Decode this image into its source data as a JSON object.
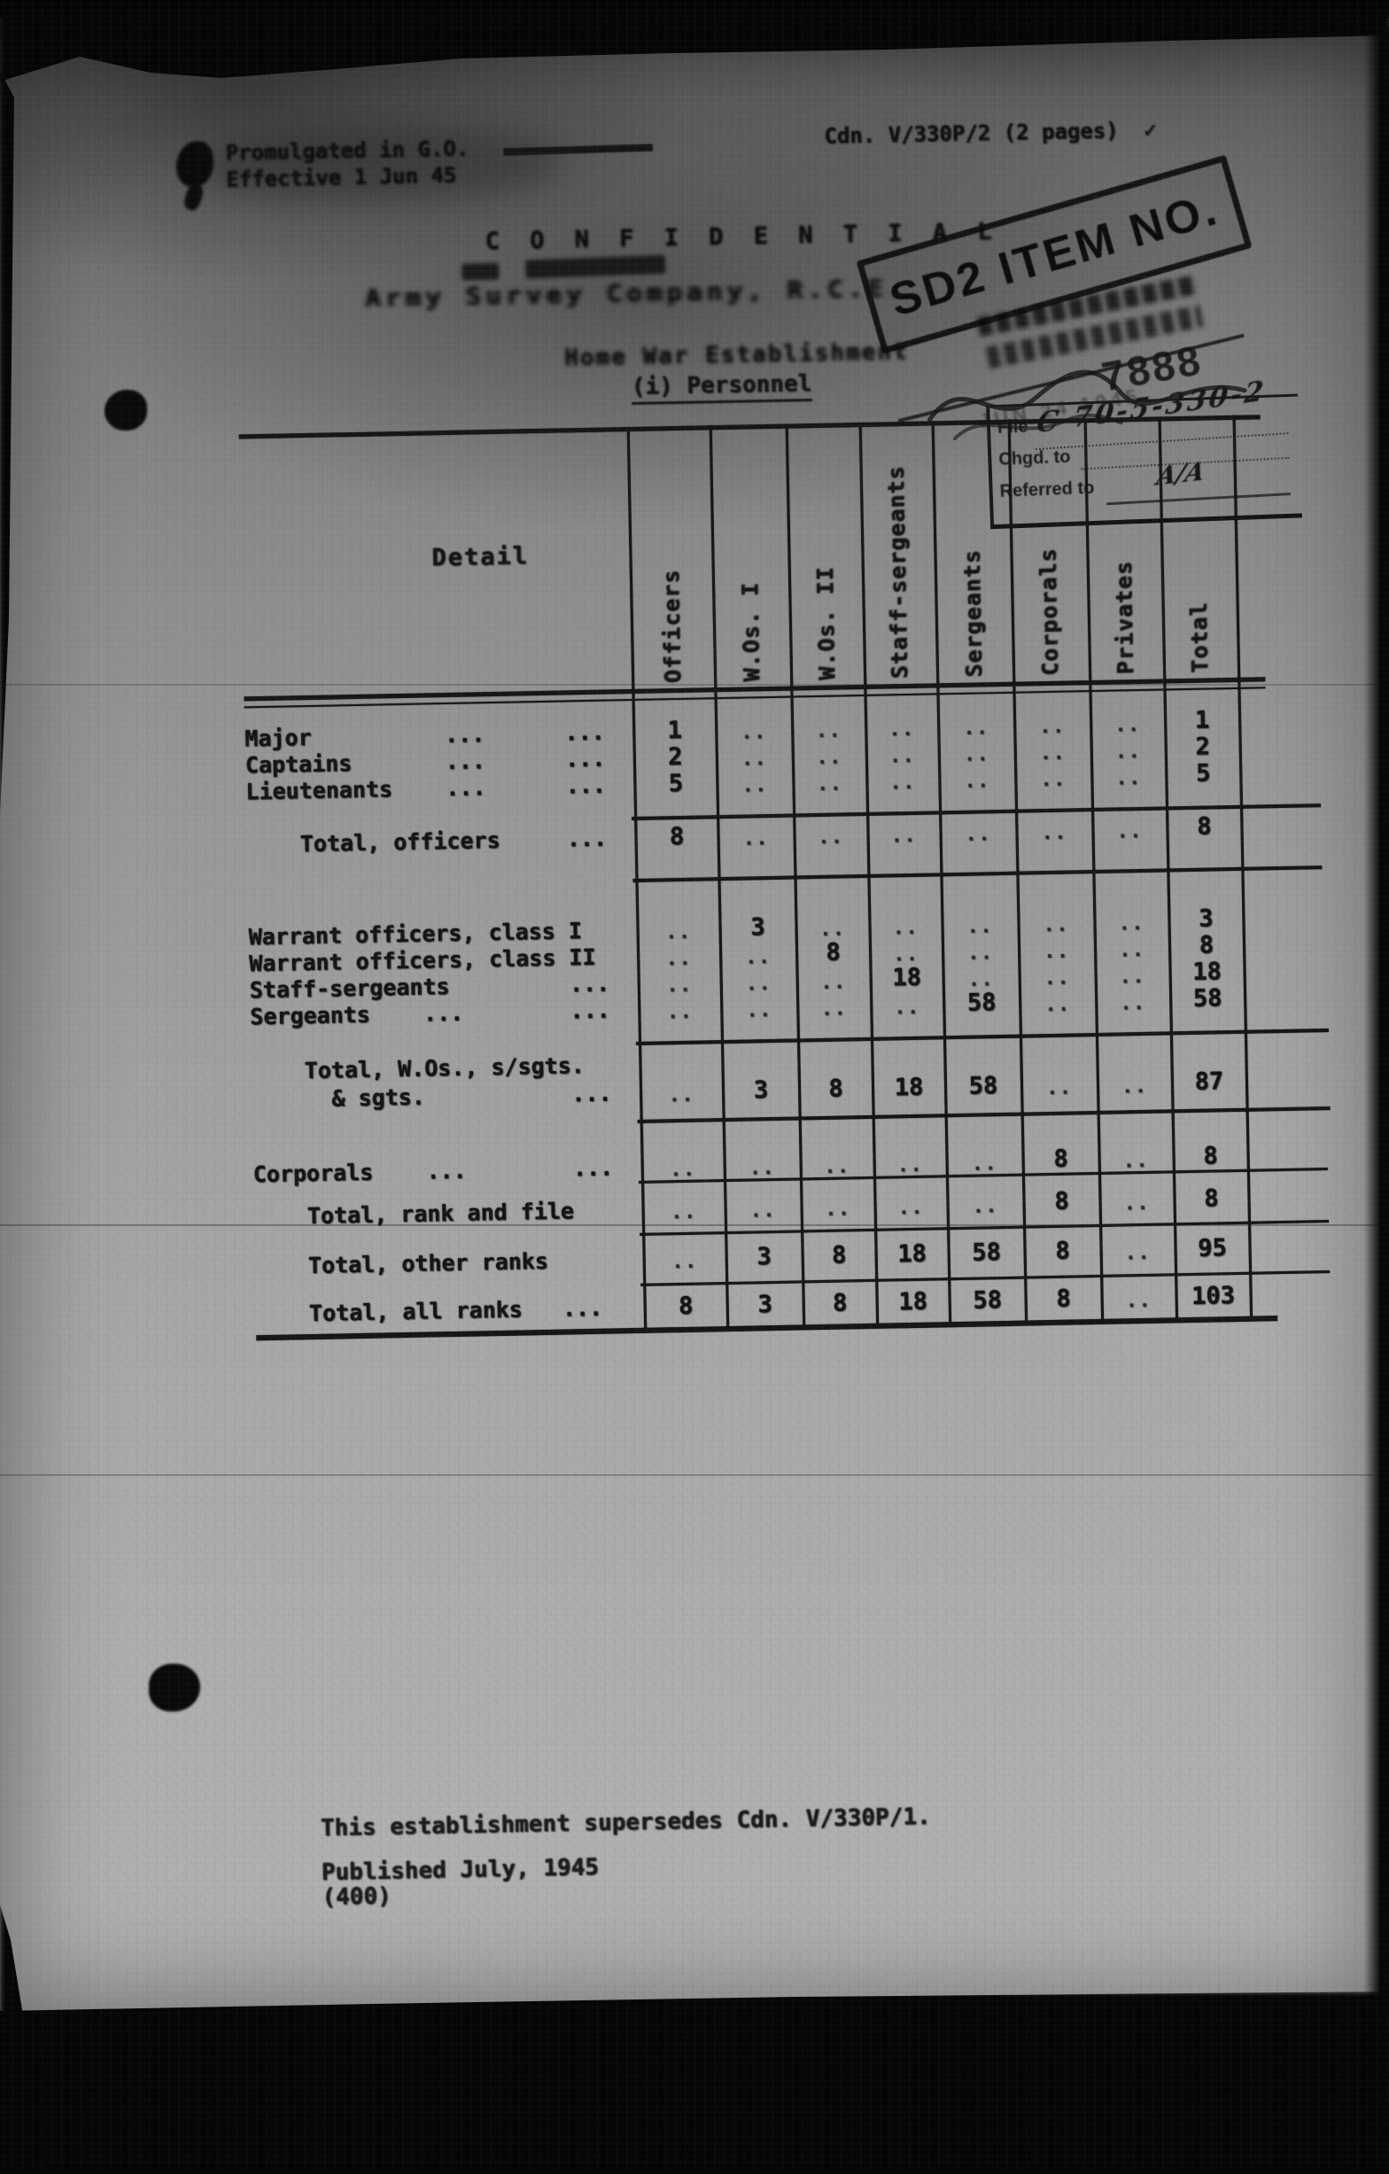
{
  "document": {
    "promulgated_line": "Promulgated in G.O.",
    "effective_line": "Effective 1 Jun 45",
    "reference": "Cdn. V/330P/2 (2 pages)",
    "reference_check": "✓",
    "classification": "C O N F I D E N T I A L",
    "unit_line": "Army Survey Company, R.C.E.",
    "establishment_line": "Home War Establishment",
    "section_heading": "(i) Personnel",
    "supersedes_line": "This establishment supersedes Cdn. V/330P/1.",
    "published_line": "Published July, 1945",
    "copies_line": "(400)"
  },
  "stamps": {
    "sd2_item": "SD2 ITEM NO.",
    "item_number": "7888",
    "date_stamp": "JUN 24 1945",
    "file_box": {
      "file_label": "File",
      "file_value": "C 70-5-330-2",
      "charged_label": "Chgd. to",
      "referred_label": "Referred to",
      "referred_value": "A/A"
    }
  },
  "table": {
    "detail_header": "Detail",
    "columns": [
      "Officers",
      "W.Os. I",
      "W.Os. II",
      "Staff-sergeants",
      "Sergeants",
      "Corporals",
      "Privates",
      "Total"
    ],
    "rows": [
      {
        "label": "Major          ...      ...",
        "values": [
          "1",
          "..",
          "..",
          "..",
          "..",
          "..",
          "..",
          "1"
        ]
      },
      {
        "label": "Captains       ...      ...",
        "values": [
          "2",
          "..",
          "..",
          "..",
          "..",
          "..",
          "..",
          "2"
        ]
      },
      {
        "label": "Lieutenants    ...      ...",
        "values": [
          "5",
          "..",
          "..",
          "..",
          "..",
          "..",
          "..",
          "5"
        ]
      },
      {
        "label": "    Total, officers     ...",
        "values": [
          "8",
          "..",
          "..",
          "..",
          "..",
          "..",
          "..",
          "8"
        ]
      },
      {
        "label": "Warrant officers, class I",
        "values": [
          "..",
          "3",
          "..",
          "..",
          "..",
          "..",
          "..",
          "3"
        ]
      },
      {
        "label": "Warrant officers, class II",
        "values": [
          "..",
          "..",
          "8",
          "..",
          "..",
          "..",
          "..",
          "8"
        ]
      },
      {
        "label": "Staff-sergeants         ...",
        "values": [
          "..",
          "..",
          "..",
          "18",
          "..",
          "..",
          "..",
          "18"
        ]
      },
      {
        "label": "Sergeants    ...        ...",
        "values": [
          "..",
          "..",
          "..",
          "..",
          "58",
          "..",
          "..",
          "58"
        ]
      },
      {
        "label": "    Total, W.Os., s/sgts.",
        "values": null
      },
      {
        "label": "      & sgts.           ...",
        "values": [
          "..",
          "3",
          "8",
          "18",
          "58",
          "..",
          "..",
          "87"
        ]
      },
      {
        "label": "Corporals    ...        ...",
        "values": [
          "..",
          "..",
          "..",
          "..",
          "..",
          "8",
          "..",
          "8"
        ]
      },
      {
        "label": "    Total, rank and file",
        "values": [
          "..",
          "..",
          "..",
          "..",
          "..",
          "8",
          "..",
          "8"
        ]
      },
      {
        "label": "    Total, other ranks",
        "values": [
          "..",
          "3",
          "8",
          "18",
          "58",
          "8",
          "..",
          "95"
        ]
      },
      {
        "label": "    Total, all ranks   ...",
        "values": [
          "8",
          "3",
          "8",
          "18",
          "58",
          "8",
          "..",
          "103"
        ]
      }
    ]
  }
}
